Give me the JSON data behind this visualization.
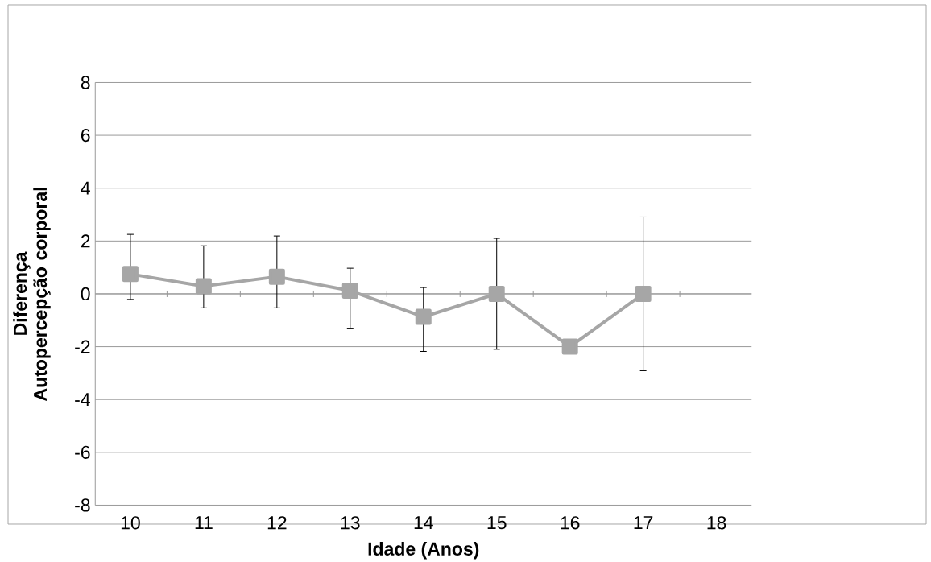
{
  "chart_data": {
    "type": "line",
    "xlabel": "Idade (Anos)",
    "ylabel": "Diferença  Autopercepção corporal",
    "categories": [
      "10",
      "11",
      "12",
      "13",
      "14",
      "15",
      "16",
      "17",
      "18"
    ],
    "series": [
      {
        "color": "#a6a6a6",
        "values": [
          0.75,
          0.29,
          0.65,
          0.12,
          -0.87,
          0,
          -2,
          0,
          null
        ],
        "errors": [
          [
            -0.21,
            2.25
          ],
          [
            -0.53,
            1.82
          ],
          [
            -0.53,
            2.19
          ],
          [
            -1.3,
            0.97
          ],
          [
            -2.18,
            0.24
          ],
          [
            -2.1,
            2.1
          ],
          null,
          [
            -2.91,
            2.91
          ],
          null
        ]
      }
    ],
    "ylim": [
      -8,
      8
    ],
    "yticks": [
      -8,
      -6,
      -4,
      -2,
      0,
      2,
      4,
      6,
      8
    ],
    "grid": "y",
    "marker": "square",
    "line_style": "solid"
  }
}
